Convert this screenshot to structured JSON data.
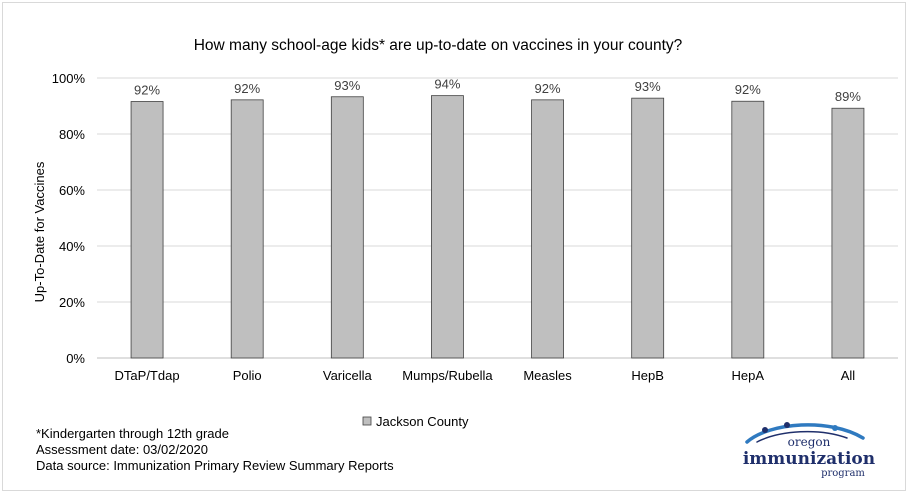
{
  "chart_data": {
    "type": "bar",
    "title": "How many school-age kids* are up-to-date on vaccines in your county?",
    "ylabel": "Up-To-Date for Vaccines",
    "xlabel": "",
    "categories": [
      "DTaP/Tdap",
      "Polio",
      "Varicella",
      "Mumps/Rubella",
      "Measles",
      "HepB",
      "HepA",
      "All"
    ],
    "series": [
      {
        "name": "Jackson County",
        "values": [
          91.6,
          92.2,
          93.3,
          93.7,
          92.2,
          92.8,
          91.7,
          89.2
        ]
      }
    ],
    "data_labels": [
      "92%",
      "92%",
      "93%",
      "94%",
      "92%",
      "93%",
      "92%",
      "89%"
    ],
    "yticks": [
      "0%",
      "20%",
      "40%",
      "60%",
      "80%",
      "100%"
    ],
    "ylim": [
      0,
      100
    ],
    "grid": true,
    "legend_position": "bottom-center",
    "colors": {
      "bar_fill": "#bfbfbf",
      "bar_stroke": "#404040",
      "grid": "#d9d9d9",
      "axis": "#bfbfbf"
    }
  },
  "footnotes": {
    "line1": "*Kindergarten through 12th grade",
    "line2": " Assessment date: 03/02/2020",
    "line3": "Data source: Immunization Primary Review Summary Reports"
  },
  "logo": {
    "top": "oregon",
    "middle": "immunization",
    "bottom": "program",
    "colors": {
      "navy": "#1f2f6b",
      "blue": "#2f7ac0"
    }
  }
}
